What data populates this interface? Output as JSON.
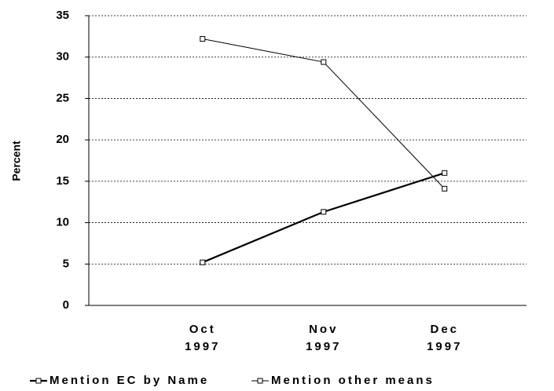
{
  "chart_data": {
    "type": "line",
    "y_label": "Percent",
    "categories": [
      "Oct 1997",
      "Nov 1997",
      "Dec 1997"
    ],
    "series": [
      {
        "name": "Mention EC by Name",
        "color": "#000000",
        "values": [
          5.2,
          11.3,
          16.0
        ]
      },
      {
        "name": "Mention other means",
        "color": "#000000",
        "values": [
          32.2,
          29.4,
          14.1
        ]
      }
    ],
    "ylim": [
      0,
      35
    ],
    "yticks": [
      0,
      5,
      10,
      15,
      20,
      25,
      30,
      35
    ],
    "grid": true,
    "legend": "bottom"
  }
}
